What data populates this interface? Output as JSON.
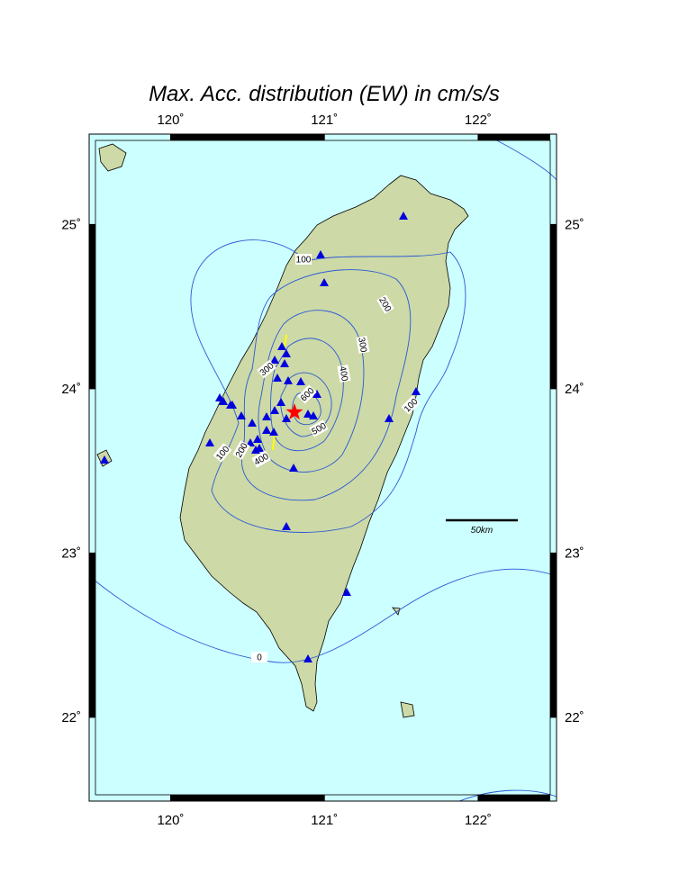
{
  "title": "Max. Acc. distribution (EW) in cm/s/s",
  "lon_lim": [
    119.47,
    122.51
  ],
  "lat_lim": [
    21.49,
    25.55
  ],
  "lon_ticks": [
    {
      "value": 120,
      "label": "120˚"
    },
    {
      "value": 121,
      "label": "121˚"
    },
    {
      "value": 122,
      "label": "122˚"
    }
  ],
  "lat_ticks": [
    {
      "value": 25,
      "label": "25˚"
    },
    {
      "value": 24,
      "label": "24˚"
    },
    {
      "value": 23,
      "label": "23˚"
    },
    {
      "value": 22,
      "label": "22˚"
    }
  ],
  "contour_labels": [
    100,
    200,
    300,
    400,
    300,
    600,
    500,
    100,
    100,
    200,
    400,
    0
  ],
  "scale_bar": "50km"
}
